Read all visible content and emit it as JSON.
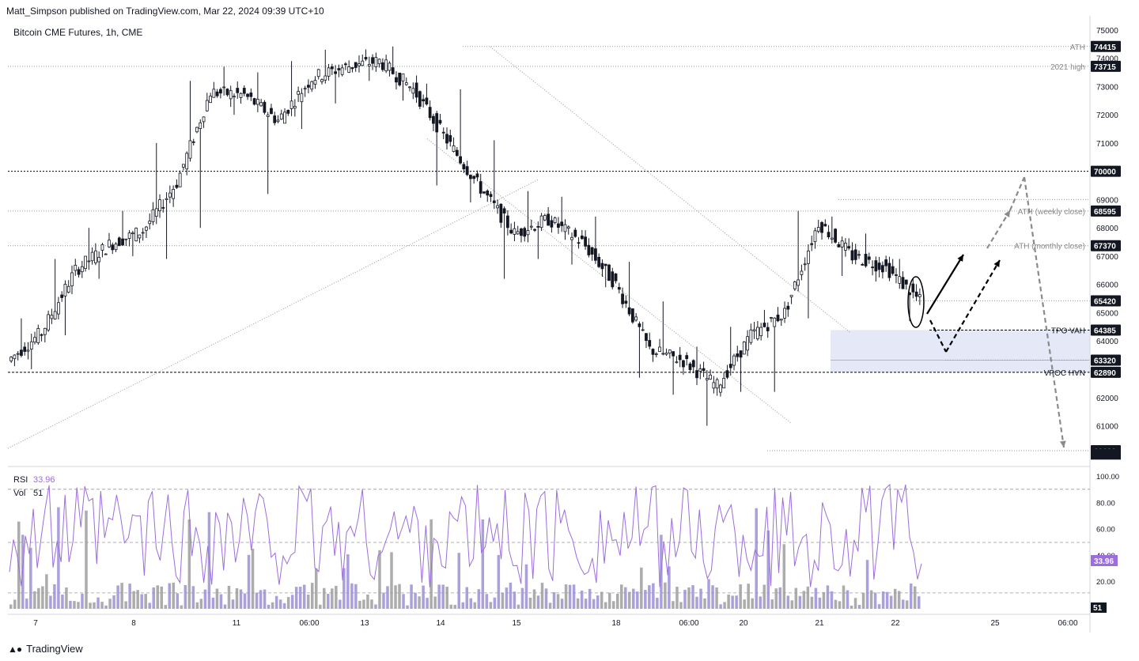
{
  "header": {
    "publisher_line": "Matt_Simpson published on TradingView.com, Mar 22, 2024 09:39 UTC+10",
    "symbol_title": "Bitcoin CME Futures, 1h, CME"
  },
  "footer": {
    "brand": "TradingView",
    "logo": "tradingview-logo-icon"
  },
  "colors": {
    "up_candle": "#131722",
    "down_candle": "#131722",
    "rsi": "#9c6ddd",
    "volume_up": "#9c8fd6",
    "volume_down": "#9e9e9e",
    "zone_fill": "#dde2f5",
    "price_tag": "#131722",
    "annotation_arrow_dark": "#000000",
    "annotation_arrow_grey": "#8a8a8a"
  },
  "price_axis": {
    "ticks": [
      "75000",
      "74000",
      "73000",
      "72000",
      "71000",
      "70000",
      "69000",
      "68000",
      "67000",
      "66000",
      "65000",
      "64000",
      "63000",
      "62000",
      "61000",
      "60000"
    ],
    "tagged_levels": [
      {
        "value": 74415,
        "label": "74415"
      },
      {
        "value": 73715,
        "label": "73715"
      },
      {
        "value": 70000,
        "label": "70000"
      },
      {
        "value": 68595,
        "label": "68595"
      },
      {
        "value": 67370,
        "label": "67370"
      },
      {
        "value": 65420,
        "label": "65420"
      },
      {
        "value": 64385,
        "label": "64385"
      },
      {
        "value": 63320,
        "label": "63320"
      },
      {
        "value": 62890,
        "label": "62890"
      },
      {
        "value": 60120,
        "label": "60120"
      }
    ],
    "level_labels": [
      {
        "value": 74415,
        "text": "ATH"
      },
      {
        "value": 73715,
        "text": "2021 high"
      },
      {
        "value": 68595,
        "text": "ATH (weekly close)"
      },
      {
        "value": 67370,
        "text": "ATH (monthly close)"
      },
      {
        "value": 64385,
        "text": "TPO VAH"
      },
      {
        "value": 62890,
        "text": "VPOC HVN"
      }
    ]
  },
  "time_axis": {
    "labels": [
      "7",
      "8",
      "11",
      "06:00",
      "13",
      "14",
      "15",
      "18",
      "06:00",
      "20",
      "21",
      "22",
      "25",
      "06:00"
    ]
  },
  "indicators": {
    "rsi_label": "RSI",
    "rsi_value": "33.96",
    "vol_label": "Vol",
    "vol_value": "51",
    "rsi_ticks": [
      "100.00",
      "80.00",
      "60.00",
      "40.00",
      "20.00",
      "0"
    ],
    "rsi_tag": "33.96",
    "vol_tag": "51"
  },
  "chart_data": {
    "type": "candlestick",
    "title": "Bitcoin CME Futures, 1h, CME",
    "ylim": [
      59700,
      75500
    ],
    "x_categories": [
      "7",
      "8",
      "11",
      "06:00",
      "13",
      "14",
      "15",
      "18",
      "06:00",
      "20",
      "21",
      "22",
      "25",
      "06:00"
    ],
    "series": [
      {
        "name": "Bitcoin CME Futures",
        "points": [
          [
            "7",
            63300,
            64800,
            63000,
            64300
          ],
          [
            "7",
            64300,
            66900,
            64200,
            66500
          ],
          [
            "8",
            66500,
            68000,
            66200,
            67400
          ],
          [
            "8",
            67400,
            68600,
            67000,
            67900
          ],
          [
            "11",
            67900,
            71000,
            66900,
            69600
          ],
          [
            "11",
            69600,
            73200,
            68000,
            72800
          ],
          [
            "06:00",
            72800,
            73700,
            72000,
            72700
          ],
          [
            "13",
            72700,
            73500,
            69200,
            71800
          ],
          [
            "13",
            71800,
            73900,
            71500,
            73300
          ],
          [
            "14",
            73300,
            74300,
            72400,
            73700
          ],
          [
            "14",
            73700,
            74100,
            73200,
            73900
          ],
          [
            "15",
            73900,
            74415,
            72500,
            72900
          ],
          [
            "15",
            72900,
            73100,
            69500,
            71100
          ],
          [
            "15",
            71100,
            72900,
            68900,
            69400
          ],
          [
            "18",
            69400,
            71100,
            66200,
            67800
          ],
          [
            "18",
            67800,
            69300,
            66900,
            68300
          ],
          [
            "06:00",
            68300,
            69100,
            66700,
            67500
          ],
          [
            "06:00",
            67500,
            68400,
            65900,
            66000
          ],
          [
            "20",
            66000,
            66800,
            62700,
            63700
          ],
          [
            "20",
            63700,
            65400,
            62100,
            63300
          ],
          [
            "20",
            63300,
            63800,
            61000,
            62400
          ],
          [
            "21",
            62400,
            64500,
            62200,
            64200
          ],
          [
            "21",
            64200,
            65100,
            62200,
            65000
          ],
          [
            "21",
            65000,
            68600,
            64800,
            68200
          ],
          [
            "22",
            68200,
            68400,
            66300,
            67000
          ],
          [
            "22",
            67000,
            67800,
            66100,
            66600
          ],
          [
            "22",
            66600,
            66900,
            64700,
            65420
          ]
        ]
      }
    ],
    "rsi_series": {
      "name": "RSI",
      "last": 33.96,
      "levels": [
        70,
        50,
        30
      ]
    },
    "volume_series": {
      "name": "Vol",
      "last": 51
    }
  }
}
